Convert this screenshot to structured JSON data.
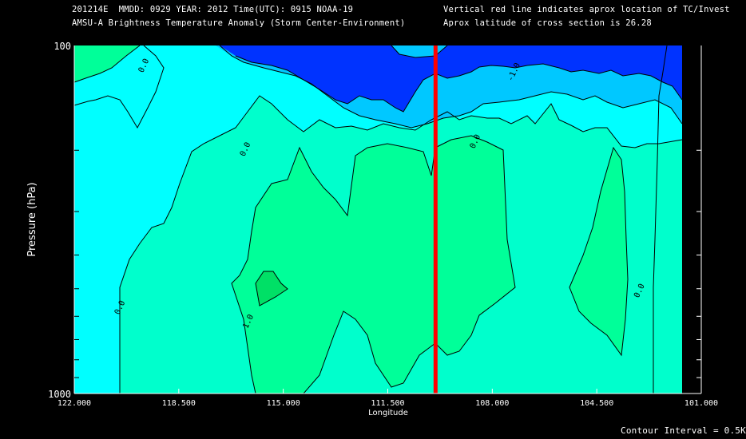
{
  "header": {
    "line1_left": "201214E  MMDD: 0929 YEAR: 2012 Time(UTC): 0915 NOAA-19",
    "line2_left": "AMSU-A Brightness Temperature Anomaly (Storm Center-Environment)",
    "line1_right": "Vertical red line indicates aprox location of TC/Invest",
    "line2_right": "Aprox latitude of cross section is 26.28"
  },
  "footer": {
    "contour_interval": "Contour Interval = 0.5K"
  },
  "colors": {
    "background": "#000000",
    "level_neg10": "#0033ff",
    "level_neg05": "#00c8ff",
    "level_neg00": "#00ffff",
    "level_pos00": "#00ffcc",
    "level_pos05": "#00ff99",
    "level_pos10": "#00e066",
    "contour_line": "#000000",
    "red_line": "#ff0000"
  },
  "chart_data": {
    "type": "contour",
    "title": "AMSU-A Brightness Temperature Anomaly (Storm Center-Environment)",
    "xlabel": "Longitude",
    "ylabel": "Pressure (hPa)",
    "xlim": [
      122.0,
      101.0
    ],
    "ylim": [
      1000,
      100
    ],
    "y_scale": "log",
    "x_ticks": [
      "122.000",
      "118.500",
      "115.000",
      "111.500",
      "108.000",
      "104.500",
      "101.000"
    ],
    "x_tick_values": [
      122.0,
      118.5,
      115.0,
      111.5,
      108.0,
      104.5,
      101.0
    ],
    "y_ticks": [
      "100",
      "1000"
    ],
    "y_minor_ticks": [
      200,
      300,
      400,
      500,
      600,
      700,
      800,
      900
    ],
    "contour_interval_K": 0.5,
    "contour_labels": [
      {
        "text": "0.0",
        "lon": 119.6,
        "p": 115
      },
      {
        "text": "0.0",
        "lon": 116.2,
        "p": 200
      },
      {
        "text": "-1.0",
        "lon": 107.2,
        "p": 120
      },
      {
        "text": "0.0",
        "lon": 108.5,
        "p": 190
      },
      {
        "text": "0.0",
        "lon": 120.4,
        "p": 570
      },
      {
        "text": "1.0",
        "lon": 116.1,
        "p": 625
      },
      {
        "text": "0.0",
        "lon": 103.0,
        "p": 510
      }
    ],
    "tc_location_lon": 109.9,
    "tc_marker_color": "#ff0000",
    "grid": false
  }
}
